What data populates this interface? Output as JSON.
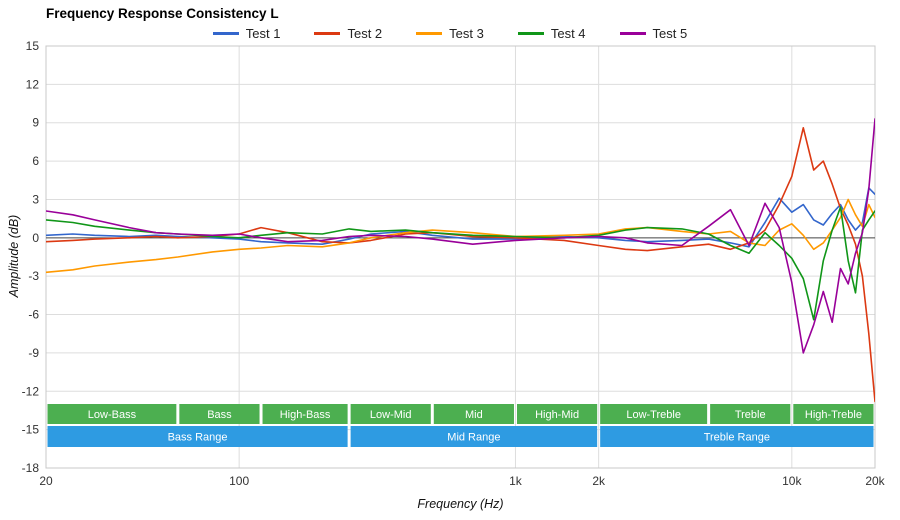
{
  "chart_data": {
    "type": "line",
    "title": "Frequency Response Consistency L",
    "xlabel": "Frequency (Hz)",
    "ylabel": "Amplitude (dB)",
    "xscale": "log",
    "xlim": [
      20,
      20000
    ],
    "ylim": [
      -18,
      15
    ],
    "grid": true,
    "legend_position": "top",
    "x_ticks": [
      {
        "f": 20,
        "label": "20"
      },
      {
        "f": 100,
        "label": "100"
      },
      {
        "f": 1000,
        "label": "1k"
      },
      {
        "f": 2000,
        "label": "2k"
      },
      {
        "f": 10000,
        "label": "10k"
      },
      {
        "f": 20000,
        "label": "20k"
      }
    ],
    "y_ticks": [
      15,
      12,
      9,
      6,
      3,
      0,
      -3,
      -6,
      -9,
      -12,
      -15,
      -18
    ],
    "x": [
      20,
      25,
      30,
      40,
      50,
      60,
      80,
      100,
      120,
      150,
      200,
      250,
      300,
      400,
      500,
      700,
      1000,
      1500,
      2000,
      2500,
      3000,
      4000,
      5000,
      6000,
      7000,
      8000,
      9000,
      10000,
      11000,
      12000,
      13000,
      14000,
      15000,
      16000,
      17000,
      18000,
      19000,
      20000
    ],
    "series": [
      {
        "name": "Test 1",
        "color": "#3366cc",
        "values": [
          0.2,
          0.3,
          0.2,
          0.1,
          0.2,
          0.1,
          0.0,
          -0.1,
          -0.3,
          -0.4,
          -0.5,
          -0.1,
          0.3,
          0.5,
          0.2,
          -0.1,
          -0.1,
          0.1,
          0.0,
          -0.2,
          -0.3,
          -0.2,
          -0.1,
          -0.4,
          -0.7,
          1.2,
          3.1,
          2.0,
          2.6,
          1.4,
          1.0,
          1.9,
          2.6,
          1.4,
          0.6,
          1.2,
          3.9,
          3.4
        ]
      },
      {
        "name": "Test 2",
        "color": "#dc3912",
        "values": [
          -0.3,
          -0.2,
          -0.1,
          0.0,
          0.1,
          0.0,
          0.1,
          0.3,
          0.8,
          0.4,
          -0.3,
          -0.4,
          -0.2,
          0.3,
          0.4,
          0.1,
          0.0,
          -0.2,
          -0.6,
          -0.9,
          -1.0,
          -0.7,
          -0.5,
          -0.9,
          -0.4,
          0.6,
          2.6,
          4.8,
          8.6,
          5.3,
          6.0,
          4.2,
          2.3,
          1.0,
          -0.5,
          -3.0,
          -7.5,
          -12.8
        ]
      },
      {
        "name": "Test 3",
        "color": "#ff9900",
        "values": [
          -2.7,
          -2.5,
          -2.2,
          -1.9,
          -1.7,
          -1.5,
          -1.1,
          -0.9,
          -0.8,
          -0.6,
          -0.7,
          -0.4,
          0.0,
          0.4,
          0.6,
          0.4,
          0.1,
          0.2,
          0.3,
          0.7,
          0.8,
          0.5,
          0.3,
          0.5,
          -0.4,
          -0.6,
          0.6,
          1.1,
          0.2,
          -0.9,
          -0.4,
          0.6,
          1.6,
          3.0,
          1.8,
          0.9,
          2.6,
          1.6
        ]
      },
      {
        "name": "Test 4",
        "color": "#109618",
        "values": [
          1.4,
          1.2,
          0.9,
          0.6,
          0.4,
          0.3,
          0.1,
          0.0,
          0.2,
          0.4,
          0.3,
          0.7,
          0.5,
          0.6,
          0.4,
          0.2,
          0.1,
          0.0,
          0.2,
          0.6,
          0.8,
          0.7,
          0.3,
          -0.6,
          -1.2,
          0.4,
          -0.6,
          -1.6,
          -3.2,
          -6.4,
          -1.8,
          0.6,
          2.4,
          -1.8,
          -4.3,
          0.6,
          1.4,
          2.1
        ]
      },
      {
        "name": "Test 5",
        "color": "#990099",
        "values": [
          2.1,
          1.8,
          1.4,
          0.8,
          0.4,
          0.3,
          0.2,
          0.3,
          0.0,
          -0.3,
          -0.2,
          0.1,
          0.2,
          0.1,
          -0.1,
          -0.5,
          -0.2,
          0.0,
          0.1,
          0.0,
          -0.4,
          -0.6,
          0.9,
          2.2,
          -0.6,
          2.7,
          0.8,
          -3.5,
          -9.0,
          -6.8,
          -4.2,
          -6.6,
          -2.4,
          -3.6,
          -1.2,
          0.4,
          3.8,
          9.3
        ]
      }
    ],
    "bands": {
      "sub_color": "#4caf50",
      "main_color": "#2e9be2",
      "label_color": "#ffffff",
      "sub": [
        {
          "label": "Low-Bass",
          "from": 20,
          "to": 60
        },
        {
          "label": "Bass",
          "from": 60,
          "to": 120
        },
        {
          "label": "High-Bass",
          "from": 120,
          "to": 250
        },
        {
          "label": "Low-Mid",
          "from": 250,
          "to": 500
        },
        {
          "label": "Mid",
          "from": 500,
          "to": 1000
        },
        {
          "label": "High-Mid",
          "from": 1000,
          "to": 2000
        },
        {
          "label": "Low-Treble",
          "from": 2000,
          "to": 5000
        },
        {
          "label": "Treble",
          "from": 5000,
          "to": 10000
        },
        {
          "label": "High-Treble",
          "from": 10000,
          "to": 20000
        }
      ],
      "main": [
        {
          "label": "Bass Range",
          "from": 20,
          "to": 250
        },
        {
          "label": "Mid Range",
          "from": 250,
          "to": 2000
        },
        {
          "label": "Treble Range",
          "from": 2000,
          "to": 20000
        }
      ]
    }
  }
}
